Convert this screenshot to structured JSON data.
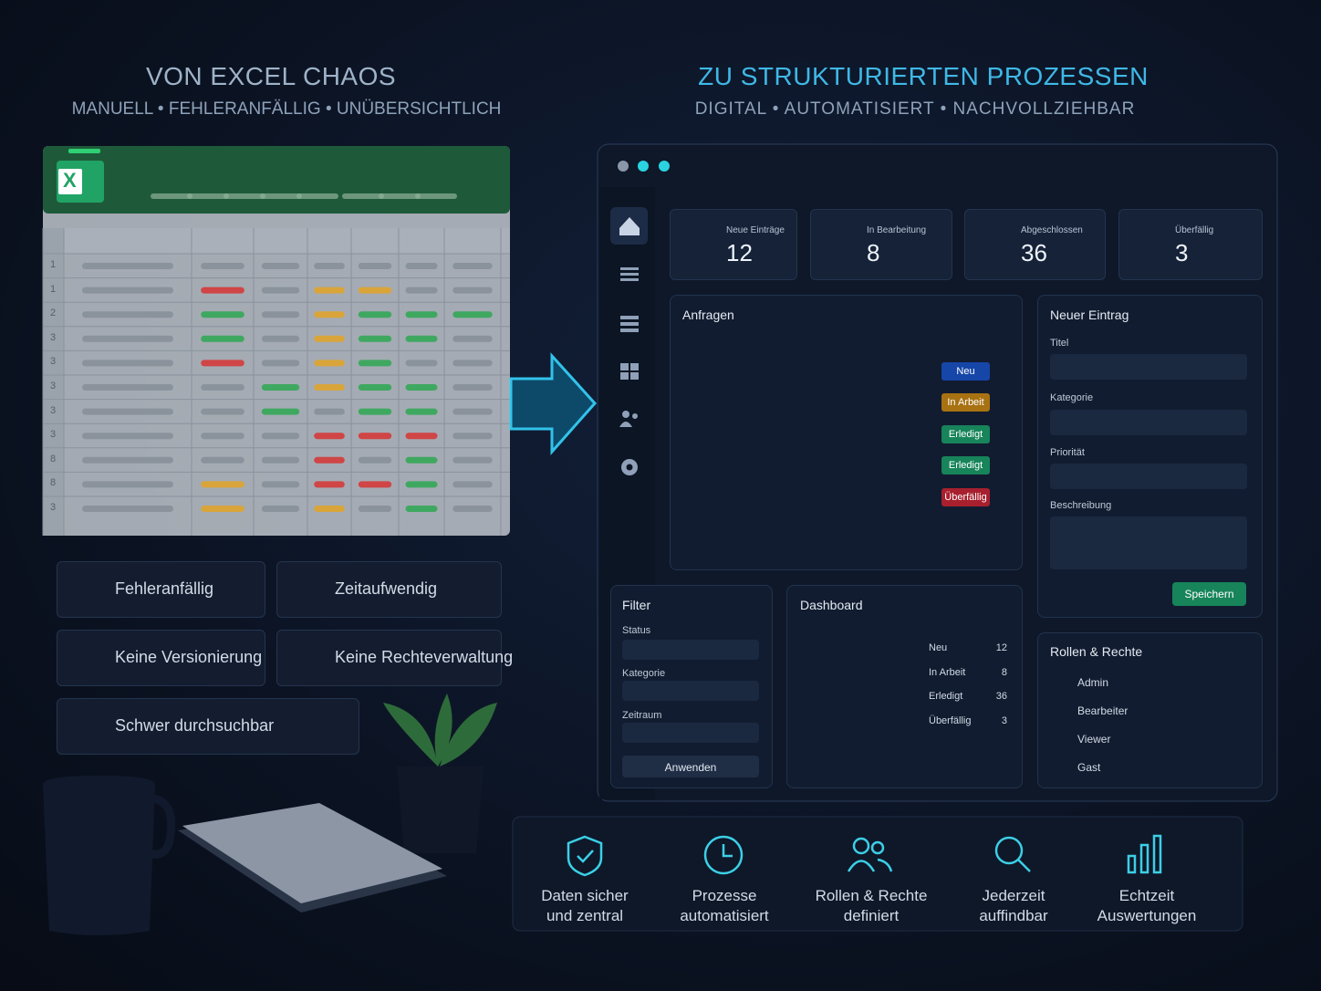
{
  "left": {
    "title": "VON EXCEL CHAOS",
    "subtitle": "MANUELL • FEHLERANFÄLLIG • UNÜBERSICHTLICH",
    "excel_icon": "X",
    "row_numbers": [
      "1",
      "1",
      "2",
      "3",
      "3",
      "3",
      "3",
      "3",
      "8",
      "8",
      "3"
    ],
    "issues": [
      "Fehleranfällig",
      "Zeitaufwendig",
      "Keine Versionierung",
      "Keine Rechteverwaltung",
      "Schwer durchsuchbar"
    ]
  },
  "right": {
    "title": "ZU STRUKTURIERTEN PROZESSEN",
    "subtitle": "DIGITAL • AUTOMATISIERT • NACHVOLLZIEHBAR",
    "stats": [
      {
        "label": "Neue Einträge",
        "value": 12
      },
      {
        "label": "In Bearbeitung",
        "value": 8
      },
      {
        "label": "Abgeschlossen",
        "value": 36
      },
      {
        "label": "Überfällig",
        "value": 3
      }
    ],
    "requests": {
      "title": "Anfragen",
      "statuses": [
        "Neu",
        "In Arbeit",
        "Erledigt",
        "Erledigt",
        "Überfällig"
      ]
    },
    "new_entry": {
      "title": "Neuer Eintrag",
      "fields": [
        "Titel",
        "Kategorie",
        "Priorität",
        "Beschreibung"
      ],
      "button": "Speichern"
    },
    "filter": {
      "title": "Filter",
      "fields": [
        "Status",
        "Kategorie",
        "Zeitraum"
      ],
      "button": "Anwenden"
    },
    "dashboard": {
      "title": "Dashboard",
      "items": [
        {
          "label": "Neu",
          "value": 12,
          "color": "#2f7fe0"
        },
        {
          "label": "In Arbeit",
          "value": 8,
          "color": "#e0a32a"
        },
        {
          "label": "Erledigt",
          "value": 36,
          "color": "#22b07a"
        },
        {
          "label": "Überfällig",
          "value": 3,
          "color": "#e04050"
        }
      ]
    },
    "roles": {
      "title": "Rollen & Rechte",
      "users": [
        {
          "name": "Admin",
          "permissions": [
            true,
            true,
            true
          ]
        },
        {
          "name": "Bearbeiter",
          "permissions": [
            false,
            true,
            true
          ]
        },
        {
          "name": "Viewer",
          "permissions": [
            true,
            true,
            false
          ]
        },
        {
          "name": "Gast",
          "permissions": [
            true,
            true,
            false
          ]
        }
      ]
    }
  },
  "benefits": [
    [
      "Daten sicher",
      "und zentral"
    ],
    [
      "Prozesse",
      "automatisiert"
    ],
    [
      "Rollen & Rechte",
      "definiert"
    ],
    [
      "Jederzeit",
      "auffindbar"
    ],
    [
      "Echtzeit",
      "Auswertungen"
    ]
  ]
}
